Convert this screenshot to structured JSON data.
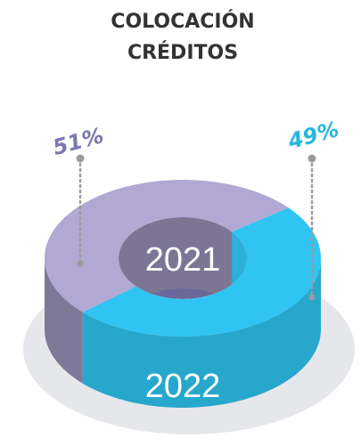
{
  "chart_data": {
    "type": "donut3d",
    "title": [
      "COLOCACIÓN",
      "CRÉDITOS"
    ],
    "categories": [
      "2021",
      "2022"
    ],
    "values": [
      51,
      49
    ],
    "value_labels": [
      "51%",
      "49%"
    ],
    "colors": [
      "#b1a8d4",
      "#2fc4f1"
    ],
    "label_colors": [
      "#7b77b1",
      "#27b7dc"
    ]
  }
}
